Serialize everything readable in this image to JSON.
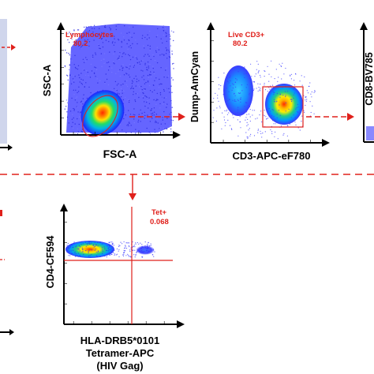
{
  "chart_data": [
    {
      "type": "scatter",
      "subtype": "flow-cytometry-density",
      "xlabel": "FSC-A",
      "ylabel": "SSC-A",
      "x_scale": "linear",
      "y_scale": "linear",
      "xticks": [
        "",
        "",
        "",
        "",
        ""
      ],
      "yticks": [
        "",
        "",
        "",
        "",
        "",
        ""
      ],
      "gate": {
        "name": "Lymphocytes",
        "value": "80.2",
        "shape": "ellipse"
      },
      "colors": {
        "low": "#1a1aff",
        "mid": "#22ccaa",
        "high_mid": "#ffe000",
        "high": "#ff2a00",
        "gate": "#e0201b"
      }
    },
    {
      "type": "scatter",
      "subtype": "flow-cytometry-density",
      "xlabel": "CD3-APC-eF780",
      "ylabel": "Dump-AmCyan",
      "x_scale": "log",
      "y_scale": "log",
      "xticks": [
        "",
        "",
        "",
        "",
        ""
      ],
      "yticks": [
        "",
        "",
        "",
        "",
        ""
      ],
      "gate": {
        "name": "Live CD3+",
        "value": "80.2",
        "shape": "rectangle"
      },
      "colors": {
        "gate": "#e0201b"
      }
    },
    {
      "type": "scatter",
      "subtype": "flow-cytometry-density",
      "xlabel": "",
      "ylabel": "CD8-BV785",
      "x_scale": "log",
      "y_scale": "log",
      "partial": true
    },
    {
      "type": "scatter",
      "subtype": "flow-cytometry-density",
      "xlabel_lines": [
        "HLA-DRB5*0101",
        "Tetramer-APC",
        "(HIV Gag)"
      ],
      "ylabel": "CD4-CF594",
      "x_scale": "log",
      "y_scale": "log",
      "xticks": [
        "",
        "",
        "",
        "",
        "",
        ""
      ],
      "yticks": [
        "",
        "",
        "",
        "",
        ""
      ],
      "gate": {
        "name": "Tet+",
        "value": "0.068",
        "shape": "quadrant"
      },
      "colors": {
        "gate": "#e0201b"
      }
    }
  ]
}
